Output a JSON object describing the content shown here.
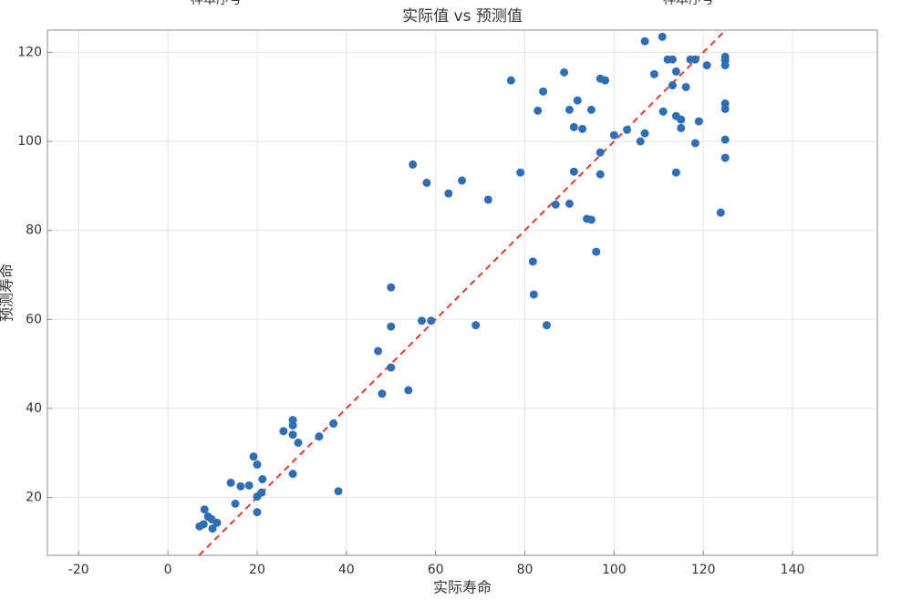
{
  "header_fragments": [
    "样本序号",
    "样本序号"
  ],
  "chart_data": {
    "type": "scatter",
    "title": "实际值 vs 预测值",
    "xlabel": "实际寿命",
    "ylabel": "预测寿命",
    "color": "#2f6db5",
    "grid": true,
    "diagonal": {
      "color": "#e03a2f"
    },
    "xlim": [
      -27,
      159
    ],
    "ylim": [
      7,
      125
    ],
    "xticks": [
      -20,
      0,
      20,
      40,
      60,
      80,
      100,
      120,
      140
    ],
    "yticks": [
      20,
      40,
      60,
      80,
      100,
      120
    ],
    "x": [
      7.1,
      8,
      8.2,
      9,
      9.8,
      11,
      10,
      14.1,
      15.1,
      16.3,
      18.2,
      19.2,
      20,
      20,
      20,
      21,
      21.2,
      25.9,
      28,
      28,
      28,
      28,
      29.2,
      33.9,
      37.1,
      38.2,
      47.1,
      48,
      50,
      50,
      50,
      53.9,
      54.9,
      56.9,
      58,
      59,
      62.9,
      65.9,
      69,
      71.8,
      76.9,
      79,
      81.8,
      82,
      82.9,
      84.1,
      84.9,
      86.9,
      88.8,
      90,
      90,
      91,
      91,
      91.8,
      92.9,
      93.9,
      94.9,
      94.9,
      96,
      96.9,
      96.9,
      96.9,
      98,
      100,
      102.9,
      105.9,
      106.9,
      106.9,
      109,
      110.8,
      111,
      112,
      113.1,
      113.1,
      113.9,
      113.9,
      113.9,
      115,
      115,
      116.1,
      117.1,
      118.2,
      118.2,
      119,
      120.8,
      123.9,
      124.9,
      124.9,
      124.9,
      124.9,
      124.9,
      124.9,
      124.9
    ],
    "values": [
      13.5,
      14,
      17.3,
      15.7,
      15.1,
      14.3,
      13,
      23.3,
      18.6,
      22.5,
      22.7,
      29.2,
      27.4,
      20.2,
      16.7,
      21.1,
      24.1,
      34.9,
      37.4,
      36.2,
      34.1,
      25.3,
      32.3,
      33.7,
      36.6,
      21.4,
      52.9,
      43.3,
      49.2,
      58.4,
      67.2,
      44.1,
      94.8,
      59.7,
      90.7,
      59.7,
      88.3,
      91.2,
      58.7,
      86.9,
      113.7,
      93,
      73,
      65.6,
      106.9,
      111.2,
      58.7,
      85.8,
      115.5,
      107.1,
      86,
      103.2,
      93.2,
      109.2,
      102.8,
      82.6,
      82.4,
      107.1,
      75.2,
      92.6,
      97.5,
      114.1,
      113.7,
      101.4,
      102.6,
      100,
      122.5,
      101.8,
      115.1,
      123.5,
      106.7,
      118.4,
      118.4,
      112.6,
      115.7,
      105.7,
      93,
      104.9,
      103,
      112.2,
      118.4,
      99.6,
      118.4,
      104.5,
      117.1,
      84,
      119,
      118.2,
      117.1,
      108.5,
      107.3,
      100.4,
      96.3
    ]
  }
}
